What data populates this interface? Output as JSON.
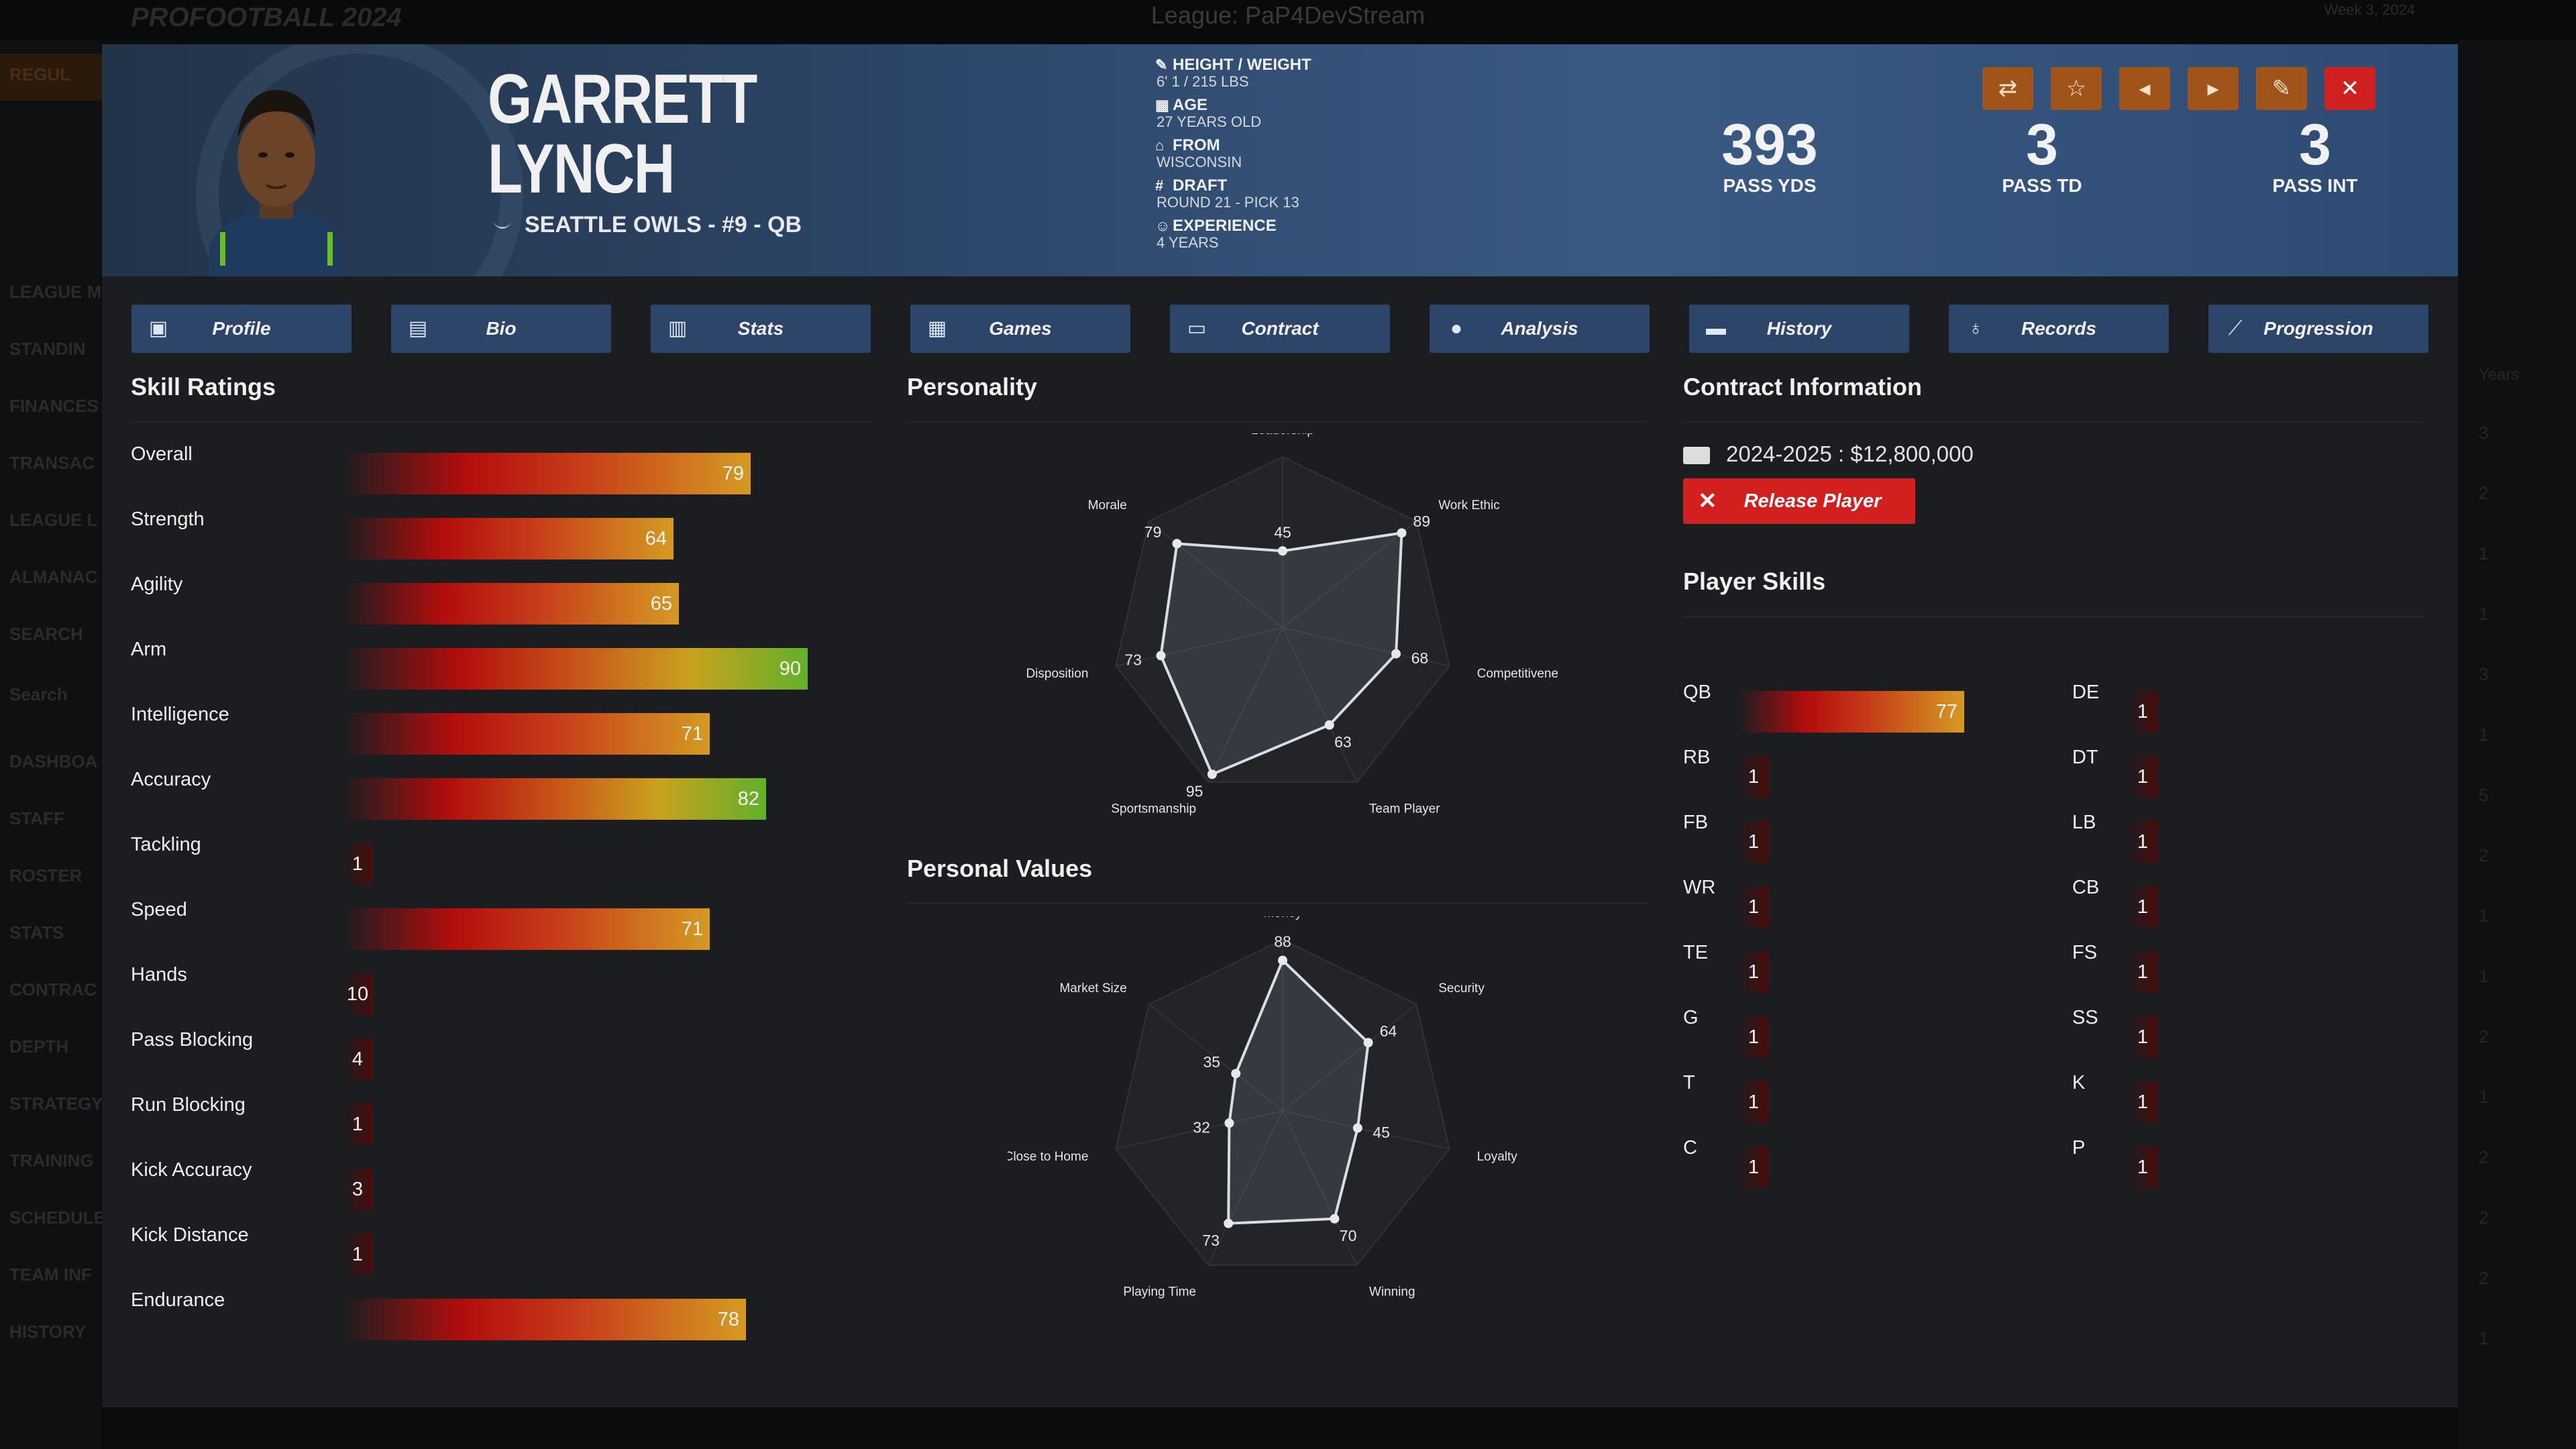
{
  "app": {
    "logo_text": "PROFOOTBALL 2024",
    "league_title": "League: PaP4DevStream",
    "week_text": "Week 3, 2024"
  },
  "background_nav": [
    "LEAGUE M",
    "STANDIN",
    "FINANCES",
    "TRANSAC",
    "LEAGUE L",
    "ALMANAC",
    "SEARCH",
    "Search",
    "DASHBOA",
    "STAFF",
    "ROSTER",
    "STATS",
    "CONTRAC",
    "DEPTH",
    "STRATEGY",
    "TRAINING",
    "SCHEDULE",
    "TEAM INF",
    "HISTORY"
  ],
  "background_nav_top": "REGUL",
  "background_right": {
    "years_label": "Years",
    "numbers": [
      "3",
      "2",
      "1",
      "1",
      "3",
      "1",
      "5",
      "2",
      "1",
      "1",
      "2",
      "1",
      "2",
      "2",
      "2",
      "1"
    ]
  },
  "header": {
    "first_name": "GARRETT",
    "last_name": "LYNCH",
    "team_line": "SEATTLE OWLS - #9 - QB",
    "info": [
      {
        "label": "HEIGHT / WEIGHT",
        "value": "6' 1 / 215 LBS",
        "icon": "ruler-icon"
      },
      {
        "label": "AGE",
        "value": "27 YEARS OLD",
        "icon": "calendar-icon"
      },
      {
        "label": "FROM",
        "value": "WISCONSIN",
        "icon": "school-icon"
      },
      {
        "label": "DRAFT",
        "value": "ROUND 21 - PICK 13",
        "icon": "hash-icon"
      },
      {
        "label": "EXPERIENCE",
        "value": "4 YEARS",
        "icon": "people-icon"
      }
    ],
    "stats": [
      {
        "value": "393",
        "label": "PASS YDS"
      },
      {
        "value": "3",
        "label": "PASS TD"
      },
      {
        "value": "3",
        "label": "PASS INT"
      }
    ]
  },
  "toolbar": {
    "buttons": [
      {
        "name": "trade-button",
        "icon": "swap-icon",
        "glyph": "⇄"
      },
      {
        "name": "favorite-button",
        "icon": "star-icon",
        "glyph": "☆"
      },
      {
        "name": "previous-player-button",
        "icon": "caret-left-icon",
        "glyph": "◂"
      },
      {
        "name": "next-player-button",
        "icon": "caret-right-icon",
        "glyph": "▸"
      },
      {
        "name": "edit-button",
        "icon": "edit-icon",
        "glyph": "✎"
      },
      {
        "name": "close-button",
        "icon": "close-icon",
        "glyph": "✕"
      }
    ]
  },
  "tabs": [
    {
      "label": "Profile",
      "icon": "profile-icon",
      "glyph": "▣"
    },
    {
      "label": "Bio",
      "icon": "bio-icon",
      "glyph": "▤"
    },
    {
      "label": "Stats",
      "icon": "stats-icon",
      "glyph": "▥"
    },
    {
      "label": "Games",
      "icon": "games-icon",
      "glyph": "▦"
    },
    {
      "label": "Contract",
      "icon": "contract-icon",
      "glyph": "▭"
    },
    {
      "label": "Analysis",
      "icon": "info-icon",
      "glyph": "●"
    },
    {
      "label": "History",
      "icon": "history-icon",
      "glyph": "▬"
    },
    {
      "label": "Records",
      "icon": "award-icon",
      "glyph": "♁"
    },
    {
      "label": "Progression",
      "icon": "chart-icon",
      "glyph": "⟋"
    }
  ],
  "sections": {
    "skill_ratings": "Skill Ratings",
    "personality": "Personality",
    "personal_values": "Personal Values",
    "contract_info": "Contract Information",
    "player_skills": "Player Skills"
  },
  "skill_ratings": [
    {
      "name": "Overall",
      "value": 79,
      "color": "orange"
    },
    {
      "name": "Strength",
      "value": 64,
      "color": "orange"
    },
    {
      "name": "Agility",
      "value": 65,
      "color": "orange"
    },
    {
      "name": "Arm",
      "value": 90,
      "color": "green"
    },
    {
      "name": "Intelligence",
      "value": 71,
      "color": "orange"
    },
    {
      "name": "Accuracy",
      "value": 82,
      "color": "green"
    },
    {
      "name": "Tackling",
      "value": 1,
      "color": "none"
    },
    {
      "name": "Speed",
      "value": 71,
      "color": "orange"
    },
    {
      "name": "Hands",
      "value": 10,
      "color": "none"
    },
    {
      "name": "Pass Blocking",
      "value": 4,
      "color": "none"
    },
    {
      "name": "Run Blocking",
      "value": 1,
      "color": "none"
    },
    {
      "name": "Kick Accuracy",
      "value": 3,
      "color": "none"
    },
    {
      "name": "Kick Distance",
      "value": 1,
      "color": "none"
    },
    {
      "name": "Endurance",
      "value": 78,
      "color": "orange"
    }
  ],
  "personality": {
    "axes": [
      "Leadership",
      "Work Ethic",
      "Competitiveness",
      "Team Player",
      "Sportsmanship",
      "Disposition",
      "Morale"
    ],
    "values": [
      45,
      89,
      68,
      63,
      95,
      73,
      79
    ]
  },
  "personal_values": {
    "axes": [
      "Money",
      "Security",
      "Loyalty",
      "Winning",
      "Playing Time",
      "Close to Home",
      "Market Size"
    ],
    "values": [
      88,
      64,
      45,
      70,
      73,
      32,
      35
    ]
  },
  "contract": {
    "line": "2024-2025 : $12,800,000",
    "release_label": "Release Player"
  },
  "player_skills": {
    "left": [
      {
        "pos": "QB",
        "value": 77
      },
      {
        "pos": "RB",
        "value": 1
      },
      {
        "pos": "FB",
        "value": 1
      },
      {
        "pos": "WR",
        "value": 1
      },
      {
        "pos": "TE",
        "value": 1
      },
      {
        "pos": "G",
        "value": 1
      },
      {
        "pos": "T",
        "value": 1
      },
      {
        "pos": "C",
        "value": 1
      }
    ],
    "right": [
      {
        "pos": "DE",
        "value": 1
      },
      {
        "pos": "DT",
        "value": 1
      },
      {
        "pos": "LB",
        "value": 1
      },
      {
        "pos": "CB",
        "value": 1
      },
      {
        "pos": "FS",
        "value": 1
      },
      {
        "pos": "SS",
        "value": 1
      },
      {
        "pos": "K",
        "value": 1
      },
      {
        "pos": "P",
        "value": 1
      }
    ]
  },
  "colors": {
    "accent": "#a0541a",
    "danger": "#d3201f",
    "tab_bg": "#2c4569",
    "panel_bg": "#1c1d20"
  }
}
